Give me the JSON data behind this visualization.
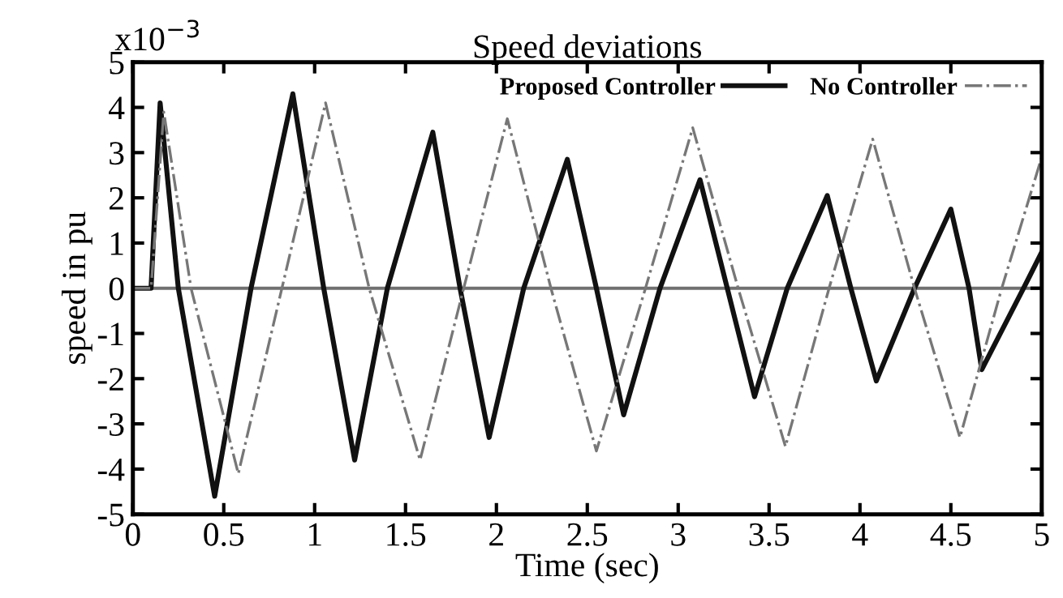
{
  "chart_data": {
    "type": "line",
    "title": "Speed deviations",
    "xlabel": "Time (sec)",
    "ylabel": "speed in pu",
    "annotations": [
      "x10$^{−3}$"
    ],
    "xlim": [
      0,
      5
    ],
    "ylim": [
      -5,
      5
    ],
    "xticks": [
      0,
      0.5,
      1,
      1.5,
      2,
      2.5,
      3,
      3.5,
      4,
      4.5,
      5
    ],
    "yticks": [
      -5,
      -4,
      -3,
      -2,
      -1,
      0,
      1,
      2,
      3,
      4,
      5
    ],
    "grid": false,
    "legend": "top right",
    "ref_lines": [
      {
        "axis": "y",
        "value": 0,
        "color": "#707070"
      }
    ],
    "series": [
      {
        "name": "Proposed Controller",
        "color": "#111111",
        "line_style": "solid",
        "x": [
          0,
          0.1,
          0.15,
          0.25,
          0.45,
          0.65,
          0.88,
          1.05,
          1.22,
          1.4,
          1.65,
          1.8,
          1.96,
          2.15,
          2.39,
          2.55,
          2.7,
          2.9,
          3.12,
          3.27,
          3.42,
          3.6,
          3.82,
          3.95,
          4.09,
          4.3,
          4.5,
          4.6,
          4.67,
          4.9,
          5.0
        ],
        "values": [
          0,
          0,
          4.1,
          0,
          -4.6,
          0,
          4.3,
          0,
          -3.8,
          0,
          3.45,
          0,
          -3.3,
          0,
          2.85,
          0,
          -2.8,
          0,
          2.4,
          0,
          -2.4,
          0,
          2.05,
          0,
          -2.05,
          0,
          1.75,
          0,
          -1.8,
          0,
          0.8
        ]
      },
      {
        "name": "No Controller",
        "color": "#777777",
        "line_style": "dashdot",
        "x": [
          0,
          0.1,
          0.17,
          0.32,
          0.58,
          0.82,
          1.06,
          1.3,
          1.58,
          1.82,
          2.06,
          2.3,
          2.55,
          2.82,
          3.08,
          3.33,
          3.59,
          3.83,
          4.07,
          4.3,
          4.55,
          4.78,
          5.0
        ],
        "values": [
          0,
          0,
          3.9,
          0,
          -4.1,
          0,
          4.1,
          0,
          -3.8,
          0,
          3.75,
          0,
          -3.6,
          0,
          3.55,
          0,
          -3.5,
          0,
          3.3,
          0,
          -3.3,
          0,
          2.9
        ]
      }
    ]
  }
}
